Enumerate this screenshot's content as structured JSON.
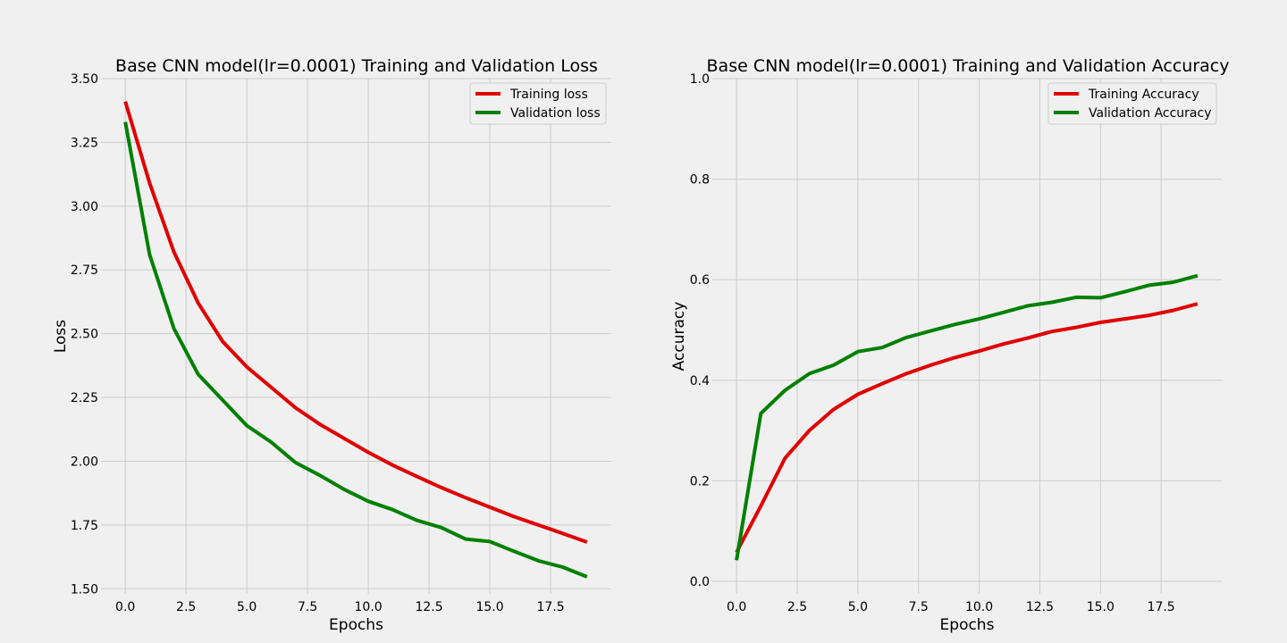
{
  "chart_data": [
    {
      "type": "line",
      "title": "Base CNN model(lr=0.0001) Training and Validation Loss",
      "xlabel": "Epochs",
      "ylabel": "Loss",
      "xlim": [
        -1,
        20
      ],
      "ylim": [
        1.48,
        3.5
      ],
      "xticks": [
        0,
        2.5,
        5,
        7.5,
        10,
        12.5,
        15,
        17.5
      ],
      "xtick_labels": [
        "0.0",
        "2.5",
        "5.0",
        "7.5",
        "10.0",
        "12.5",
        "15.0",
        "17.5"
      ],
      "yticks": [
        1.5,
        1.75,
        2.0,
        2.25,
        2.5,
        2.75,
        3.0,
        3.25,
        3.5
      ],
      "ytick_labels": [
        "1.50",
        "1.75",
        "2.00",
        "2.25",
        "2.50",
        "2.75",
        "3.00",
        "3.25",
        "3.50"
      ],
      "grid": true,
      "legend_position": "top-right",
      "x": [
        0,
        1,
        2,
        3,
        4,
        5,
        6,
        7,
        8,
        9,
        10,
        11,
        12,
        13,
        14,
        15,
        16,
        17,
        18,
        19
      ],
      "series": [
        {
          "name": "Training loss",
          "color": "#e00000",
          "values": [
            3.41,
            3.09,
            2.82,
            2.62,
            2.47,
            2.37,
            2.29,
            2.21,
            2.145,
            2.09,
            2.035,
            1.985,
            1.94,
            1.897,
            1.857,
            1.82,
            1.783,
            1.75,
            1.717,
            1.683
          ]
        },
        {
          "name": "Validation loss",
          "color": "#008000",
          "values": [
            3.33,
            2.81,
            2.52,
            2.34,
            2.24,
            2.14,
            2.075,
            1.995,
            1.945,
            1.89,
            1.843,
            1.81,
            1.768,
            1.74,
            1.695,
            1.685,
            1.647,
            1.61,
            1.585,
            1.547
          ]
        }
      ]
    },
    {
      "type": "line",
      "title": "Base CNN model(lr=0.0001) Training and Validation Accuracy",
      "xlabel": "Epochs",
      "ylabel": "Accuracy",
      "xlim": [
        -1,
        20
      ],
      "ylim": [
        -0.025,
        1.0
      ],
      "xticks": [
        0,
        2.5,
        5,
        7.5,
        10,
        12.5,
        15,
        17.5
      ],
      "xtick_labels": [
        "0.0",
        "2.5",
        "5.0",
        "7.5",
        "10.0",
        "12.5",
        "15.0",
        "17.5"
      ],
      "yticks": [
        0.0,
        0.2,
        0.4,
        0.6,
        0.8,
        1.0
      ],
      "ytick_labels": [
        "0.0",
        "0.2",
        "0.4",
        "0.6",
        "0.8",
        "1.0"
      ],
      "grid": true,
      "legend_position": "top-right",
      "x": [
        0,
        1,
        2,
        3,
        4,
        5,
        6,
        7,
        8,
        9,
        10,
        11,
        12,
        13,
        14,
        15,
        16,
        17,
        18,
        19
      ],
      "series": [
        {
          "name": "Training Accuracy",
          "color": "#e00000",
          "values": [
            0.058,
            0.15,
            0.245,
            0.3,
            0.342,
            0.372,
            0.393,
            0.413,
            0.43,
            0.445,
            0.458,
            0.472,
            0.484,
            0.497,
            0.505,
            0.515,
            0.522,
            0.529,
            0.539,
            0.552
          ]
        },
        {
          "name": "Validation Accuracy",
          "color": "#008000",
          "values": [
            0.042,
            0.334,
            0.38,
            0.413,
            0.43,
            0.457,
            0.465,
            0.485,
            0.498,
            0.511,
            0.522,
            0.535,
            0.548,
            0.555,
            0.565,
            0.564,
            0.576,
            0.589,
            0.595,
            0.608
          ]
        }
      ]
    }
  ]
}
